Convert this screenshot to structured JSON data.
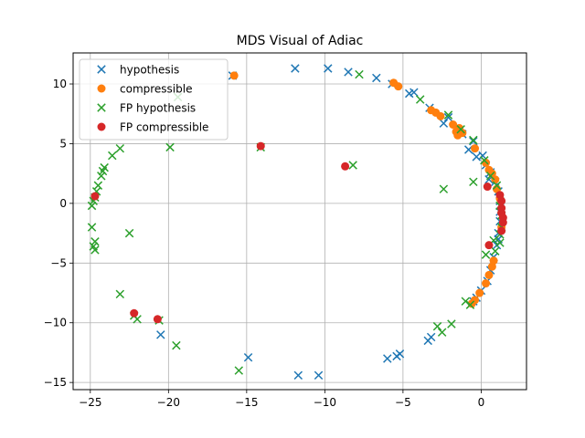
{
  "chart_data": {
    "type": "scatter",
    "title": "MDS Visual of Adiac",
    "xlabel": "",
    "ylabel": "",
    "xlim": [
      -26.1,
      2.9
    ],
    "ylim": [
      -15.6,
      12.6
    ],
    "xticks": [
      -25,
      -20,
      -15,
      -10,
      -5,
      0
    ],
    "yticks": [
      -15,
      -10,
      -5,
      0,
      5,
      10
    ],
    "grid": true,
    "legend_position": "top-left",
    "series": [
      {
        "name": "hypothesis",
        "marker": "x",
        "color": "#1f77b4",
        "points": [
          [
            -11.9,
            11.3
          ],
          [
            -9.8,
            11.3
          ],
          [
            -8.5,
            11.0
          ],
          [
            -6.7,
            10.5
          ],
          [
            -5.7,
            10.0
          ],
          [
            -4.6,
            9.2
          ],
          [
            -3.3,
            8.0
          ],
          [
            -2.4,
            6.7
          ],
          [
            -1.2,
            5.8
          ],
          [
            -0.8,
            4.5
          ],
          [
            -0.3,
            3.9
          ],
          [
            0.1,
            4.0
          ],
          [
            0.3,
            3.2
          ],
          [
            0.6,
            2.6
          ],
          [
            0.9,
            1.8
          ],
          [
            1.1,
            1.0
          ],
          [
            1.2,
            0.2
          ],
          [
            1.2,
            -0.7
          ],
          [
            1.2,
            -1.5
          ],
          [
            1.1,
            -2.5
          ],
          [
            1.0,
            -3.5
          ],
          [
            0.8,
            -4.5
          ],
          [
            0.6,
            -5.6
          ],
          [
            0.4,
            -6.5
          ],
          [
            0.0,
            -7.3
          ],
          [
            -0.3,
            -7.9
          ],
          [
            -0.5,
            -8.2
          ],
          [
            -3.4,
            -11.5
          ],
          [
            -3.2,
            -11.2
          ],
          [
            -5.4,
            -12.8
          ],
          [
            -5.2,
            -12.6
          ],
          [
            -6.0,
            -13.0
          ],
          [
            -10.4,
            -14.4
          ],
          [
            -11.7,
            -14.4
          ],
          [
            -14.9,
            -12.9
          ],
          [
            -20.5,
            -11.0
          ],
          [
            -15.9,
            10.7
          ],
          [
            -0.5,
            5.2
          ],
          [
            0.5,
            2.0
          ],
          [
            1.1,
            -3.0
          ],
          [
            -2.1,
            7.2
          ],
          [
            -4.3,
            9.3
          ]
        ]
      },
      {
        "name": "compressible",
        "marker": "o",
        "color": "#ff7f0e",
        "points": [
          [
            -15.8,
            10.7
          ],
          [
            -5.6,
            10.1
          ],
          [
            -5.3,
            9.8
          ],
          [
            -3.2,
            7.8
          ],
          [
            -2.9,
            7.6
          ],
          [
            -2.6,
            7.3
          ],
          [
            -1.8,
            6.6
          ],
          [
            -1.6,
            6.0
          ],
          [
            -1.4,
            6.3
          ],
          [
            -1.5,
            5.7
          ],
          [
            -1.2,
            5.9
          ],
          [
            -0.4,
            4.6
          ],
          [
            0.3,
            3.4
          ],
          [
            0.5,
            2.8
          ],
          [
            0.7,
            2.5
          ],
          [
            0.9,
            2.0
          ],
          [
            1.0,
            1.2
          ],
          [
            1.2,
            0.4
          ],
          [
            0.8,
            -4.8
          ],
          [
            0.7,
            -5.3
          ],
          [
            0.5,
            -6.0
          ],
          [
            0.3,
            -6.7
          ],
          [
            -0.1,
            -7.5
          ],
          [
            -0.4,
            -8.1
          ],
          [
            -0.6,
            -8.4
          ],
          [
            1.3,
            -2.0
          ]
        ]
      },
      {
        "name": "FP hypothesis",
        "marker": "x",
        "color": "#2ca02c",
        "points": [
          [
            -19.4,
            8.9
          ],
          [
            -7.8,
            10.8
          ],
          [
            -3.9,
            8.7
          ],
          [
            -2.1,
            7.4
          ],
          [
            -1.3,
            6.2
          ],
          [
            -0.5,
            5.3
          ],
          [
            0.2,
            3.6
          ],
          [
            0.6,
            2.3
          ],
          [
            1.0,
            1.5
          ],
          [
            1.2,
            -0.2
          ],
          [
            1.3,
            -1.0
          ],
          [
            1.3,
            -2.0
          ],
          [
            1.2,
            -3.3
          ],
          [
            0.9,
            -4.0
          ],
          [
            0.3,
            -4.3
          ],
          [
            0.8,
            -3.1
          ],
          [
            -0.5,
            1.8
          ],
          [
            -2.4,
            1.2
          ],
          [
            -8.2,
            3.2
          ],
          [
            -14.1,
            4.7
          ],
          [
            -19.9,
            4.7
          ],
          [
            -23.1,
            4.6
          ],
          [
            -23.6,
            4.0
          ],
          [
            -24.1,
            3.0
          ],
          [
            -24.2,
            2.7
          ],
          [
            -24.3,
            2.3
          ],
          [
            -24.5,
            1.5
          ],
          [
            -24.6,
            1.0
          ],
          [
            -24.7,
            0.5
          ],
          [
            -24.8,
            0.2
          ],
          [
            -24.9,
            -0.2
          ],
          [
            -24.9,
            -2.0
          ],
          [
            -24.7,
            -3.2
          ],
          [
            -24.8,
            -3.6
          ],
          [
            -24.7,
            -3.9
          ],
          [
            -22.5,
            -2.5
          ],
          [
            -23.1,
            -7.6
          ],
          [
            -22.2,
            -9.4
          ],
          [
            -22.0,
            -9.7
          ],
          [
            -20.6,
            -9.8
          ],
          [
            -19.5,
            -11.9
          ],
          [
            -15.5,
            -14.0
          ],
          [
            -2.8,
            -10.3
          ],
          [
            -2.5,
            -10.8
          ],
          [
            -1.9,
            -10.1
          ],
          [
            -0.7,
            -8.5
          ],
          [
            -1.0,
            -8.2
          ],
          [
            1.2,
            -2.6
          ]
        ]
      },
      {
        "name": "FP compressible",
        "marker": "o",
        "color": "#d62728",
        "points": [
          [
            -14.1,
            4.8
          ],
          [
            -8.7,
            3.1
          ],
          [
            0.4,
            1.4
          ],
          [
            1.2,
            0.7
          ],
          [
            1.3,
            0.2
          ],
          [
            1.3,
            -0.4
          ],
          [
            1.3,
            -0.8
          ],
          [
            1.4,
            -1.2
          ],
          [
            1.4,
            -1.6
          ],
          [
            1.3,
            -2.3
          ],
          [
            0.5,
            -3.5
          ],
          [
            -24.7,
            0.6
          ],
          [
            -22.2,
            -9.2
          ],
          [
            -20.7,
            -9.7
          ]
        ]
      }
    ]
  }
}
